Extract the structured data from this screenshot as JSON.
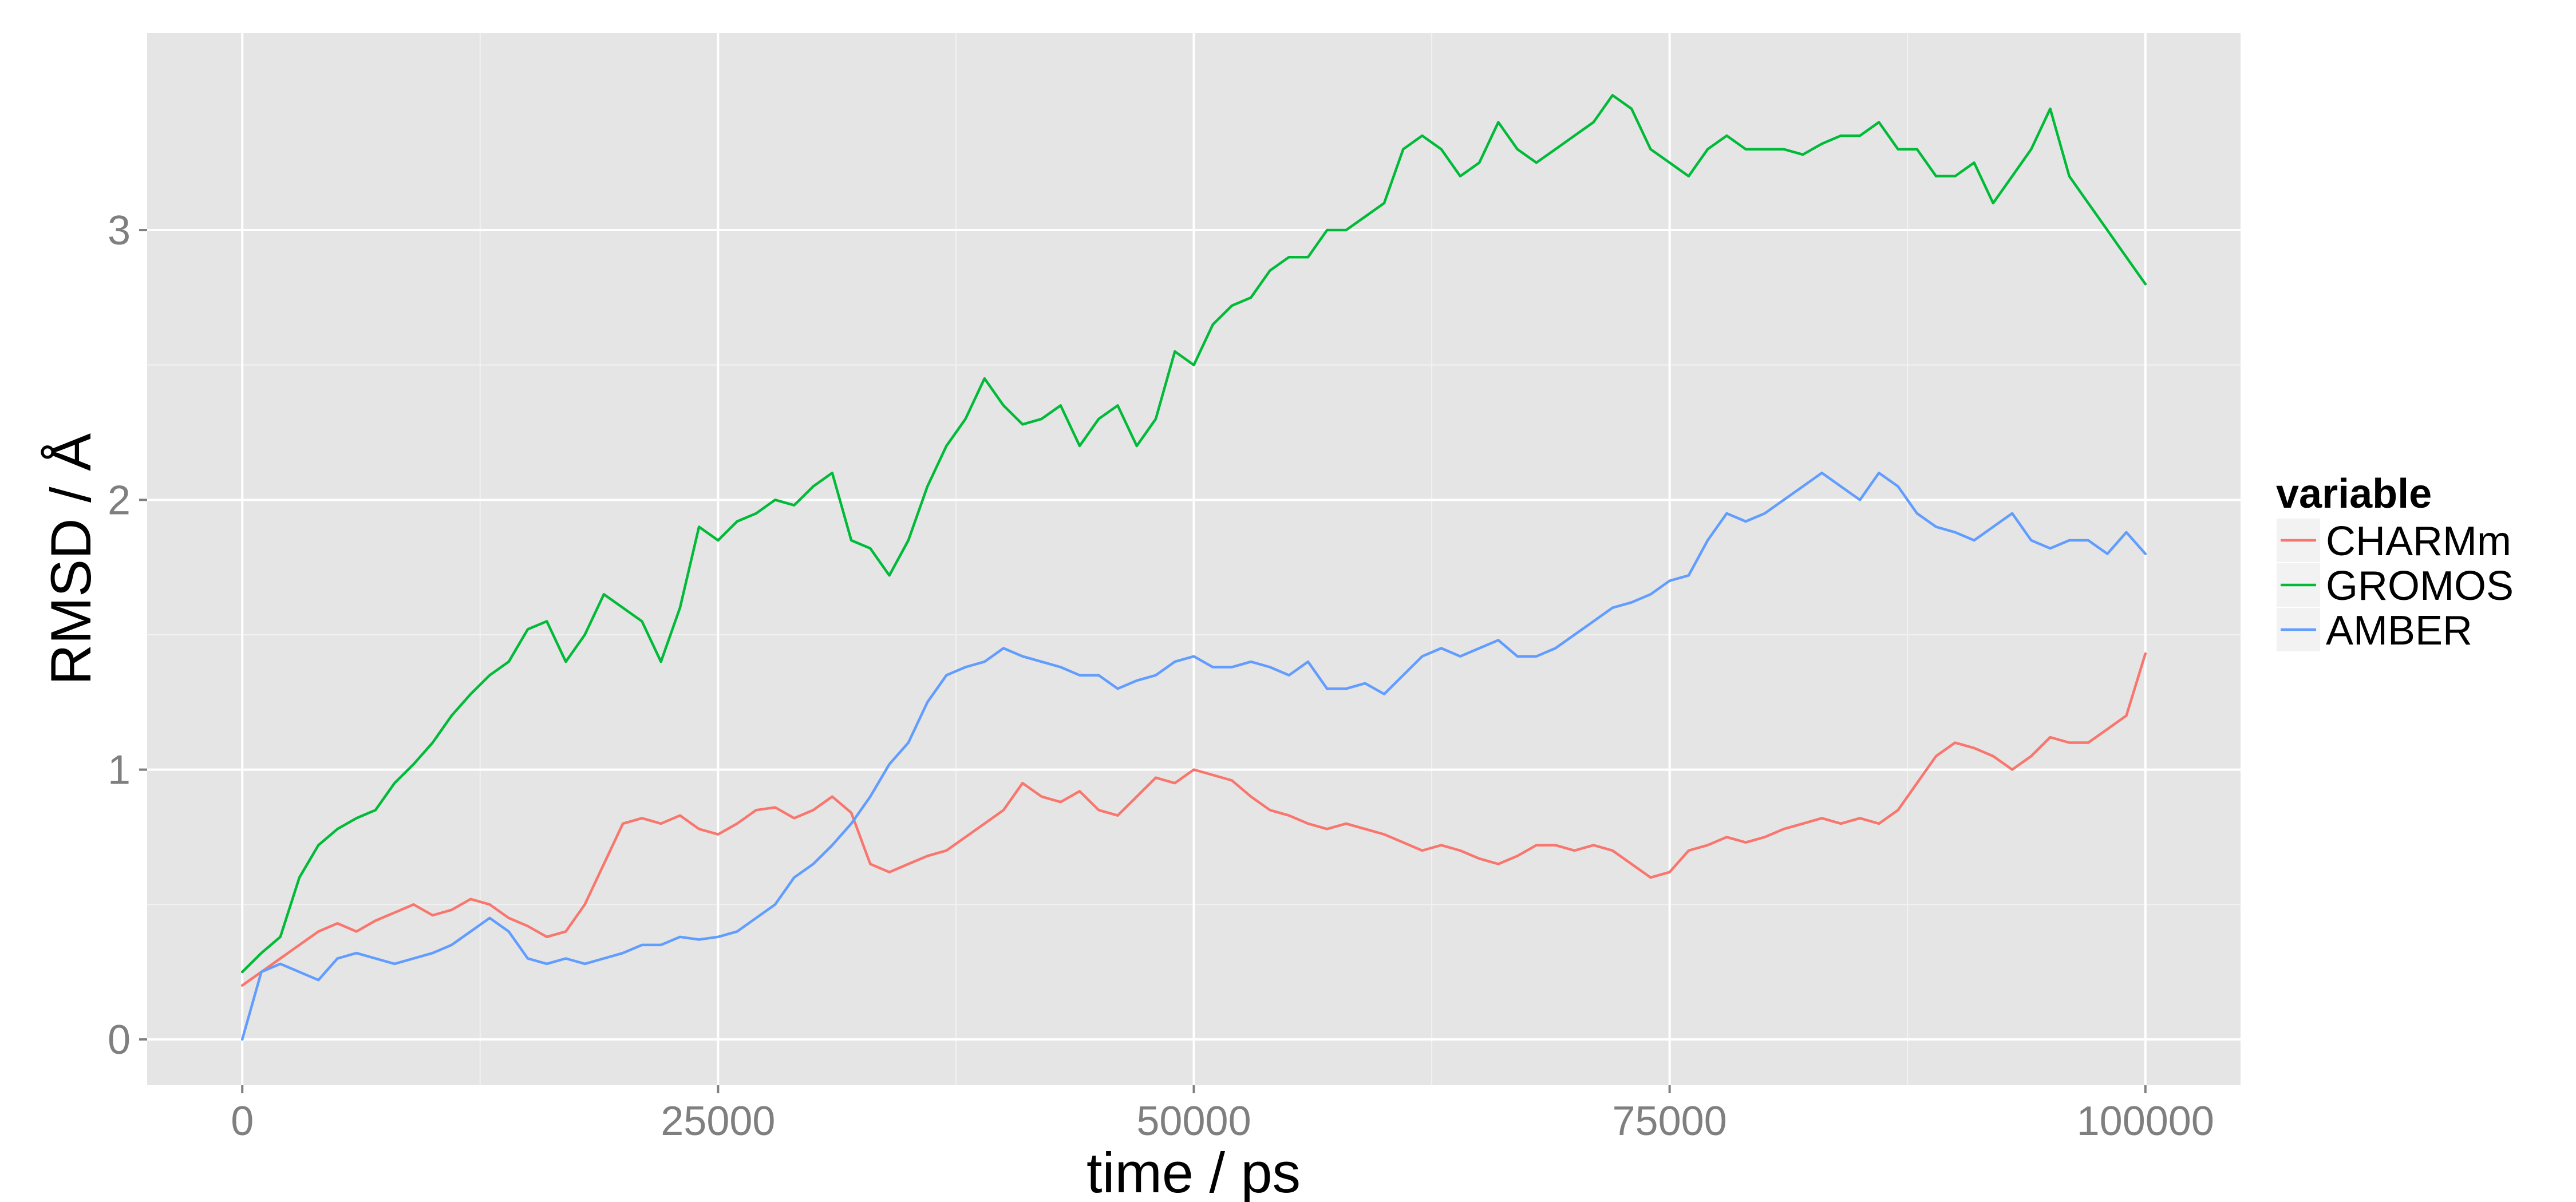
{
  "chart_data": {
    "type": "line",
    "title": "",
    "xlabel": "time / ps",
    "ylabel": "RMSD / Å",
    "xlim": [
      -5000,
      105000
    ],
    "ylim": [
      -0.17,
      3.73
    ],
    "x_ticks": [
      0,
      25000,
      50000,
      75000,
      100000
    ],
    "x_tick_labels": [
      "0",
      "25000",
      "50000",
      "75000",
      "100000"
    ],
    "y_ticks": [
      0,
      1,
      2,
      3
    ],
    "y_tick_labels": [
      "0",
      "1",
      "2",
      "3"
    ],
    "grid": true,
    "legend": {
      "title": "variable",
      "position": "right"
    },
    "series": [
      {
        "name": "CHARMm",
        "color": "#F8766D",
        "x": [
          0,
          1000,
          2000,
          3000,
          4000,
          5000,
          6000,
          7000,
          8000,
          9000,
          10000,
          11000,
          12000,
          13000,
          14000,
          15000,
          16000,
          17000,
          18000,
          19000,
          20000,
          21000,
          22000,
          23000,
          24000,
          25000,
          26000,
          27000,
          28000,
          29000,
          30000,
          31000,
          32000,
          33000,
          34000,
          35000,
          36000,
          37000,
          38000,
          39000,
          40000,
          41000,
          42000,
          43000,
          44000,
          45000,
          46000,
          47000,
          48000,
          49000,
          50000,
          51000,
          52000,
          53000,
          54000,
          55000,
          56000,
          57000,
          58000,
          59000,
          60000,
          61000,
          62000,
          63000,
          64000,
          65000,
          66000,
          67000,
          68000,
          69000,
          70000,
          71000,
          72000,
          73000,
          74000,
          75000,
          76000,
          77000,
          78000,
          79000,
          80000,
          81000,
          82000,
          83000,
          84000,
          85000,
          86000,
          87000,
          88000,
          89000,
          90000,
          91000,
          92000,
          93000,
          94000,
          95000,
          96000,
          97000,
          98000,
          99000,
          100000
        ],
        "y": [
          0.2,
          0.25,
          0.3,
          0.35,
          0.4,
          0.43,
          0.4,
          0.44,
          0.47,
          0.5,
          0.46,
          0.48,
          0.52,
          0.5,
          0.45,
          0.42,
          0.38,
          0.4,
          0.5,
          0.65,
          0.8,
          0.82,
          0.8,
          0.83,
          0.78,
          0.76,
          0.8,
          0.85,
          0.86,
          0.82,
          0.85,
          0.9,
          0.84,
          0.65,
          0.62,
          0.65,
          0.68,
          0.7,
          0.75,
          0.8,
          0.85,
          0.95,
          0.9,
          0.88,
          0.92,
          0.85,
          0.83,
          0.9,
          0.97,
          0.95,
          1.0,
          0.98,
          0.96,
          0.9,
          0.85,
          0.83,
          0.8,
          0.78,
          0.8,
          0.78,
          0.76,
          0.73,
          0.7,
          0.72,
          0.7,
          0.67,
          0.65,
          0.68,
          0.72,
          0.72,
          0.7,
          0.72,
          0.7,
          0.65,
          0.6,
          0.62,
          0.7,
          0.72,
          0.75,
          0.73,
          0.75,
          0.78,
          0.8,
          0.82,
          0.8,
          0.82,
          0.8,
          0.85,
          0.95,
          1.05,
          1.1,
          1.08,
          1.05,
          1.0,
          1.05,
          1.12,
          1.1,
          1.1,
          1.15,
          1.2,
          1.43
        ]
      },
      {
        "name": "GROMOS",
        "color": "#00BA38",
        "x": [
          0,
          1000,
          2000,
          3000,
          4000,
          5000,
          6000,
          7000,
          8000,
          9000,
          10000,
          11000,
          12000,
          13000,
          14000,
          15000,
          16000,
          17000,
          18000,
          19000,
          20000,
          21000,
          22000,
          23000,
          24000,
          25000,
          26000,
          27000,
          28000,
          29000,
          30000,
          31000,
          32000,
          33000,
          34000,
          35000,
          36000,
          37000,
          38000,
          39000,
          40000,
          41000,
          42000,
          43000,
          44000,
          45000,
          46000,
          47000,
          48000,
          49000,
          50000,
          51000,
          52000,
          53000,
          54000,
          55000,
          56000,
          57000,
          58000,
          59000,
          60000,
          61000,
          62000,
          63000,
          64000,
          65000,
          66000,
          67000,
          68000,
          69000,
          70000,
          71000,
          72000,
          73000,
          74000,
          75000,
          76000,
          77000,
          78000,
          79000,
          80000,
          81000,
          82000,
          83000,
          84000,
          85000,
          86000,
          87000,
          88000,
          89000,
          90000,
          91000,
          92000,
          93000,
          94000,
          95000,
          96000,
          97000,
          98000,
          99000,
          100000
        ],
        "y": [
          0.25,
          0.32,
          0.38,
          0.6,
          0.72,
          0.78,
          0.82,
          0.85,
          0.95,
          1.02,
          1.1,
          1.2,
          1.28,
          1.35,
          1.4,
          1.52,
          1.55,
          1.4,
          1.5,
          1.65,
          1.6,
          1.55,
          1.4,
          1.6,
          1.9,
          1.85,
          1.92,
          1.95,
          2.0,
          1.98,
          2.05,
          2.1,
          1.85,
          1.82,
          1.72,
          1.85,
          2.05,
          2.2,
          2.3,
          2.45,
          2.35,
          2.28,
          2.3,
          2.35,
          2.2,
          2.3,
          2.35,
          2.2,
          2.3,
          2.55,
          2.5,
          2.65,
          2.72,
          2.75,
          2.85,
          2.9,
          2.9,
          3.0,
          3.0,
          3.05,
          3.1,
          3.3,
          3.35,
          3.3,
          3.2,
          3.25,
          3.4,
          3.3,
          3.25,
          3.3,
          3.35,
          3.4,
          3.5,
          3.45,
          3.3,
          3.25,
          3.2,
          3.3,
          3.35,
          3.3,
          3.3,
          3.3,
          3.28,
          3.32,
          3.35,
          3.35,
          3.4,
          3.3,
          3.3,
          3.2,
          3.2,
          3.25,
          3.1,
          3.2,
          3.3,
          3.45,
          3.2,
          3.1,
          3.0,
          2.9,
          2.8
        ]
      },
      {
        "name": "AMBER",
        "color": "#619CFF",
        "x": [
          0,
          1000,
          2000,
          3000,
          4000,
          5000,
          6000,
          7000,
          8000,
          9000,
          10000,
          11000,
          12000,
          13000,
          14000,
          15000,
          16000,
          17000,
          18000,
          19000,
          20000,
          21000,
          22000,
          23000,
          24000,
          25000,
          26000,
          27000,
          28000,
          29000,
          30000,
          31000,
          32000,
          33000,
          34000,
          35000,
          36000,
          37000,
          38000,
          39000,
          40000,
          41000,
          42000,
          43000,
          44000,
          45000,
          46000,
          47000,
          48000,
          49000,
          50000,
          51000,
          52000,
          53000,
          54000,
          55000,
          56000,
          57000,
          58000,
          59000,
          60000,
          61000,
          62000,
          63000,
          64000,
          65000,
          66000,
          67000,
          68000,
          69000,
          70000,
          71000,
          72000,
          73000,
          74000,
          75000,
          76000,
          77000,
          78000,
          79000,
          80000,
          81000,
          82000,
          83000,
          84000,
          85000,
          86000,
          87000,
          88000,
          89000,
          90000,
          91000,
          92000,
          93000,
          94000,
          95000,
          96000,
          97000,
          98000,
          99000,
          100000
        ],
        "y": [
          0.0,
          0.25,
          0.28,
          0.25,
          0.22,
          0.3,
          0.32,
          0.3,
          0.28,
          0.3,
          0.32,
          0.35,
          0.4,
          0.45,
          0.4,
          0.3,
          0.28,
          0.3,
          0.28,
          0.3,
          0.32,
          0.35,
          0.35,
          0.38,
          0.37,
          0.38,
          0.4,
          0.45,
          0.5,
          0.6,
          0.65,
          0.72,
          0.8,
          0.9,
          1.02,
          1.1,
          1.25,
          1.35,
          1.38,
          1.4,
          1.45,
          1.42,
          1.4,
          1.38,
          1.35,
          1.35,
          1.3,
          1.33,
          1.35,
          1.4,
          1.42,
          1.38,
          1.38,
          1.4,
          1.38,
          1.35,
          1.4,
          1.3,
          1.3,
          1.32,
          1.28,
          1.35,
          1.42,
          1.45,
          1.42,
          1.45,
          1.48,
          1.42,
          1.42,
          1.45,
          1.5,
          1.55,
          1.6,
          1.62,
          1.65,
          1.7,
          1.72,
          1.85,
          1.95,
          1.92,
          1.95,
          2.0,
          2.05,
          2.1,
          2.05,
          2.0,
          2.1,
          2.05,
          1.95,
          1.9,
          1.88,
          1.85,
          1.9,
          1.95,
          1.85,
          1.82,
          1.85,
          1.85,
          1.8,
          1.88,
          1.8
        ]
      }
    ]
  }
}
